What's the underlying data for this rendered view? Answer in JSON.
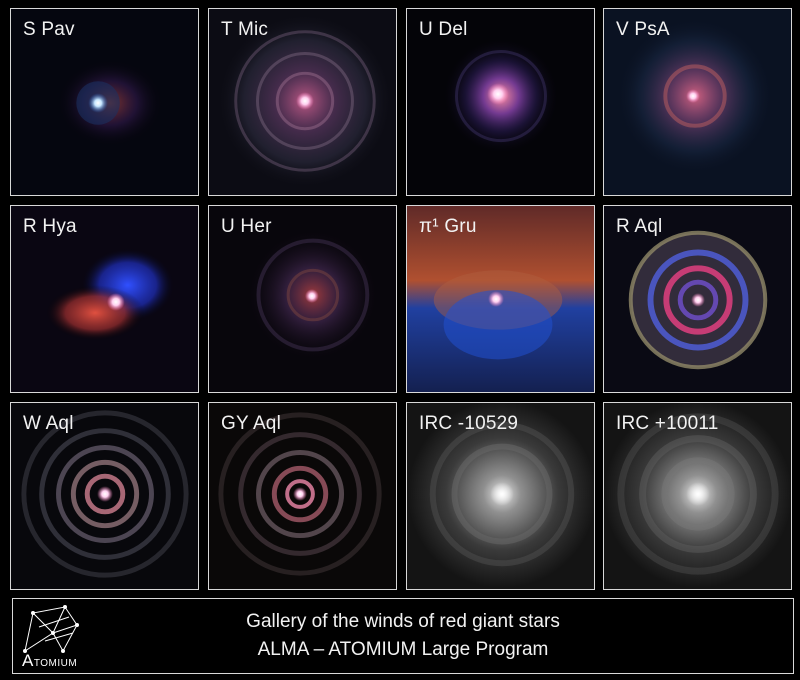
{
  "panels": [
    {
      "label": "S Pav"
    },
    {
      "label": "T Mic"
    },
    {
      "label": "U Del"
    },
    {
      "label": "V PsA"
    },
    {
      "label": "R Hya"
    },
    {
      "label": "U Her"
    },
    {
      "label": "π¹ Gru"
    },
    {
      "label": "R Aql"
    },
    {
      "label": "W Aql"
    },
    {
      "label": "GY Aql"
    },
    {
      "label": "IRC -10529"
    },
    {
      "label": "IRC +10011"
    }
  ],
  "caption": {
    "line1": "Gallery of the winds of red giant stars",
    "line2": "ALMA – ATOMIUM Large Program"
  },
  "logo": {
    "initial": "A",
    "rest": "TOMIUM"
  },
  "colors": {
    "background": "#000000",
    "border": "#d8d8d8",
    "text": "#f2f2f2"
  }
}
